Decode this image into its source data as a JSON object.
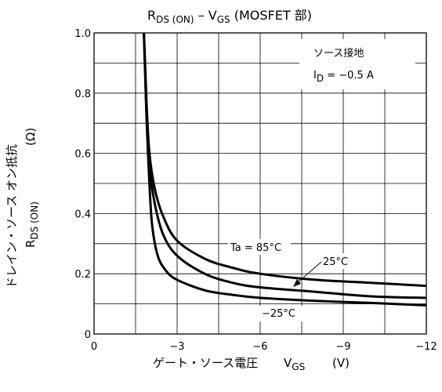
{
  "chart_data": {
    "type": "line",
    "title": {
      "r": "R",
      "r_sub": "DS (ON)",
      "dash": " – V",
      "v_sub": "GS",
      "tail": " (MOSFET 部)"
    },
    "xlabel": {
      "main": "ゲート・ソース電圧",
      "v": "V",
      "v_sub": "GS",
      "unit": "(V)"
    },
    "ylabel": {
      "line1": "ドレイン・ソース オン抵抗",
      "r": "R",
      "r_sub": "DS (ON)",
      "unit": "(Ω)"
    },
    "xlim": [
      0,
      -12
    ],
    "ylim": [
      0,
      1.0
    ],
    "x_ticks": [
      "0",
      "−3",
      "−6",
      "−9",
      "−12"
    ],
    "y_ticks": [
      "0",
      "0.2",
      "0.4",
      "0.6",
      "0.8",
      "1.0"
    ],
    "grid": true,
    "conditions": {
      "line1": "ソース接地",
      "i": "I",
      "i_sub": "D",
      "i_val": " = −0.5 A"
    },
    "series": [
      {
        "name": "Ta = 85°C",
        "x": [
          -1.8,
          -1.85,
          -1.9,
          -2.0,
          -2.2,
          -2.5,
          -3.0,
          -4.0,
          -5.0,
          -6.0,
          -8.0,
          -10.0,
          -12.0
        ],
        "y": [
          1.0,
          0.88,
          0.76,
          0.6,
          0.48,
          0.39,
          0.31,
          0.25,
          0.22,
          0.2,
          0.18,
          0.17,
          0.16
        ]
      },
      {
        "name": "25°C",
        "x": [
          -1.8,
          -1.85,
          -1.9,
          -2.0,
          -2.2,
          -2.5,
          -3.0,
          -4.0,
          -5.0,
          -6.0,
          -8.0,
          -10.0,
          -12.0
        ],
        "y": [
          1.0,
          0.85,
          0.72,
          0.56,
          0.43,
          0.33,
          0.26,
          0.2,
          0.17,
          0.155,
          0.14,
          0.125,
          0.12
        ]
      },
      {
        "name": "−25°C",
        "x": [
          -1.8,
          -1.85,
          -1.9,
          -2.0,
          -2.1,
          -2.3,
          -2.6,
          -3.0,
          -4.0,
          -5.0,
          -6.0,
          -8.0,
          -10.0,
          -12.0
        ],
        "y": [
          1.0,
          0.86,
          0.71,
          0.5,
          0.36,
          0.26,
          0.21,
          0.18,
          0.145,
          0.13,
          0.12,
          0.11,
          0.103,
          0.095
        ]
      }
    ]
  }
}
